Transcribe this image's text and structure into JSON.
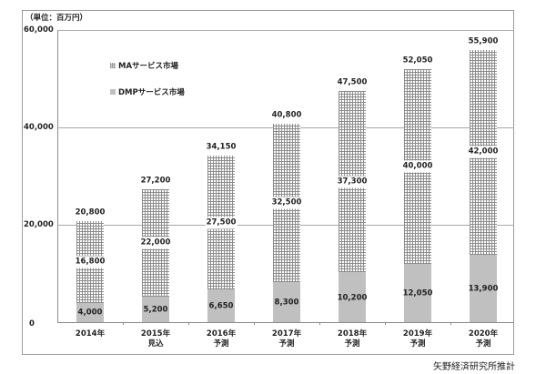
{
  "chart_data": {
    "type": "bar",
    "stacked": true,
    "unit_label": "（単位：百万円）",
    "categories": [
      "2014年",
      "2015年\n見込",
      "2016年\n予測",
      "2017年\n予測",
      "2018年\n予測",
      "2019年\n予測",
      "2020年\n予測"
    ],
    "category_lines": [
      [
        "2014年"
      ],
      [
        "2015年",
        "見込"
      ],
      [
        "2016年",
        "予測"
      ],
      [
        "2017年",
        "予測"
      ],
      [
        "2018年",
        "予測"
      ],
      [
        "2019年",
        "予測"
      ],
      [
        "2020年",
        "予測"
      ]
    ],
    "series": [
      {
        "name": "DMPサービス市場",
        "values": [
          4000,
          5200,
          6650,
          8300,
          10200,
          12050,
          13900
        ],
        "color": "#c0c0c0",
        "pattern": "solid"
      },
      {
        "name": "MAサービス市場",
        "values": [
          16800,
          22000,
          27500,
          32500,
          37300,
          40000,
          42000
        ],
        "color": "#8c8c8c",
        "pattern": "crosshatch"
      }
    ],
    "totals": [
      20800,
      27200,
      34150,
      40800,
      47500,
      52050,
      55900
    ],
    "labels": {
      "dmp": [
        "4,000",
        "5,200",
        "6,650",
        "8,300",
        "10,200",
        "12,050",
        "13,900"
      ],
      "ma": [
        "16,800",
        "22,000",
        "27,500",
        "32,500",
        "37,300",
        "40,000",
        "42,000"
      ],
      "total": [
        "20,800",
        "27,200",
        "34,150",
        "40,800",
        "47,500",
        "52,050",
        "55,900"
      ]
    },
    "ylim": [
      0,
      60000
    ],
    "yticks": [
      0,
      20000,
      40000,
      60000
    ],
    "ytick_labels": [
      "0",
      "20,000",
      "40,000",
      "60,000"
    ],
    "grid": true,
    "legend": [
      "MAサービス市場",
      "DMPサービス市場"
    ],
    "legend_position": "upper-left inside",
    "source": "矢野経済研究所推計",
    "xlabel": "",
    "ylabel": ""
  }
}
